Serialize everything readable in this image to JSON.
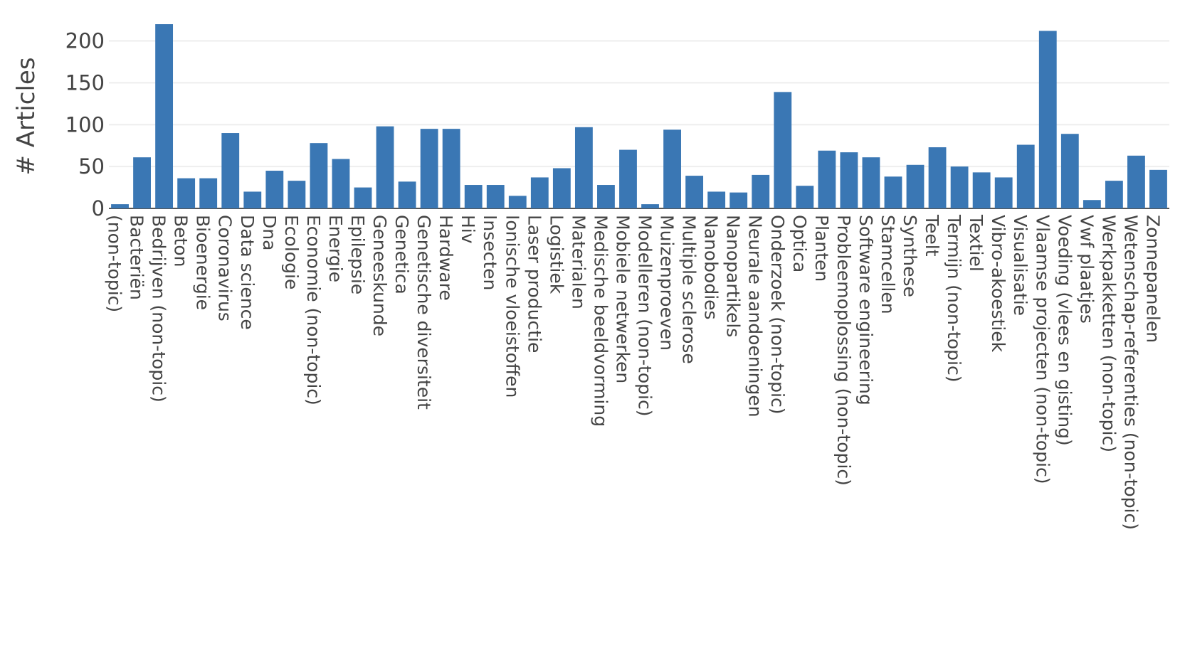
{
  "chart_data": {
    "type": "bar",
    "title": "",
    "xlabel": "",
    "ylabel": "# Articles",
    "ylim": [
      0,
      220
    ],
    "yticks": [
      0,
      50,
      100,
      150,
      200
    ],
    "grid": true,
    "bar_color": "#3a77b4",
    "categories": [
      "(non-topic)",
      "Bacteriën",
      "Bedrijven (non-topic)",
      "Beton",
      "Bioenergie",
      "Coronavirus",
      "Data science",
      "Dna",
      "Ecologie",
      "Economie (non-topic)",
      "Energie",
      "Epilepsie",
      "Geneeskunde",
      "Genetica",
      "Genetische diversiteit",
      "Hardware",
      "Hiv",
      "Insecten",
      "Ionische vloeistoffen",
      "Laser productie",
      "Logistiek",
      "Materialen",
      "Medische beeldvorming",
      "Mobiele netwerken",
      "Modelleren (non-topic)",
      "Muizenproeven",
      "Multiple sclerose",
      "Nanobodies",
      "Nanopartikels",
      "Neurale aandoeningen",
      "Onderzoek (non-topic)",
      "Optica",
      "Planten",
      "Probleemoplossing (non-topic)",
      "Software engineering",
      "Stamcellen",
      "Synthese",
      "Teelt",
      "Termijn (non-topic)",
      "Textiel",
      "Vibro-akoestiek",
      "Visualisatie",
      "Vlaamse projecten (non-topic)",
      "Voeding (vlees en gisting)",
      "Vwf plaatjes",
      "Werkpakketten (non-topic)",
      "Wetenschap-referenties (non-topic)",
      "Zonnepanelen"
    ],
    "values": [
      5,
      61,
      220,
      36,
      36,
      90,
      20,
      45,
      33,
      78,
      59,
      25,
      98,
      32,
      95,
      95,
      28,
      28,
      15,
      37,
      48,
      97,
      28,
      70,
      5,
      94,
      39,
      20,
      19,
      40,
      139,
      27,
      69,
      67,
      61,
      38,
      52,
      73,
      50,
      43,
      37,
      76,
      212,
      89,
      10,
      33,
      63,
      46
    ]
  }
}
